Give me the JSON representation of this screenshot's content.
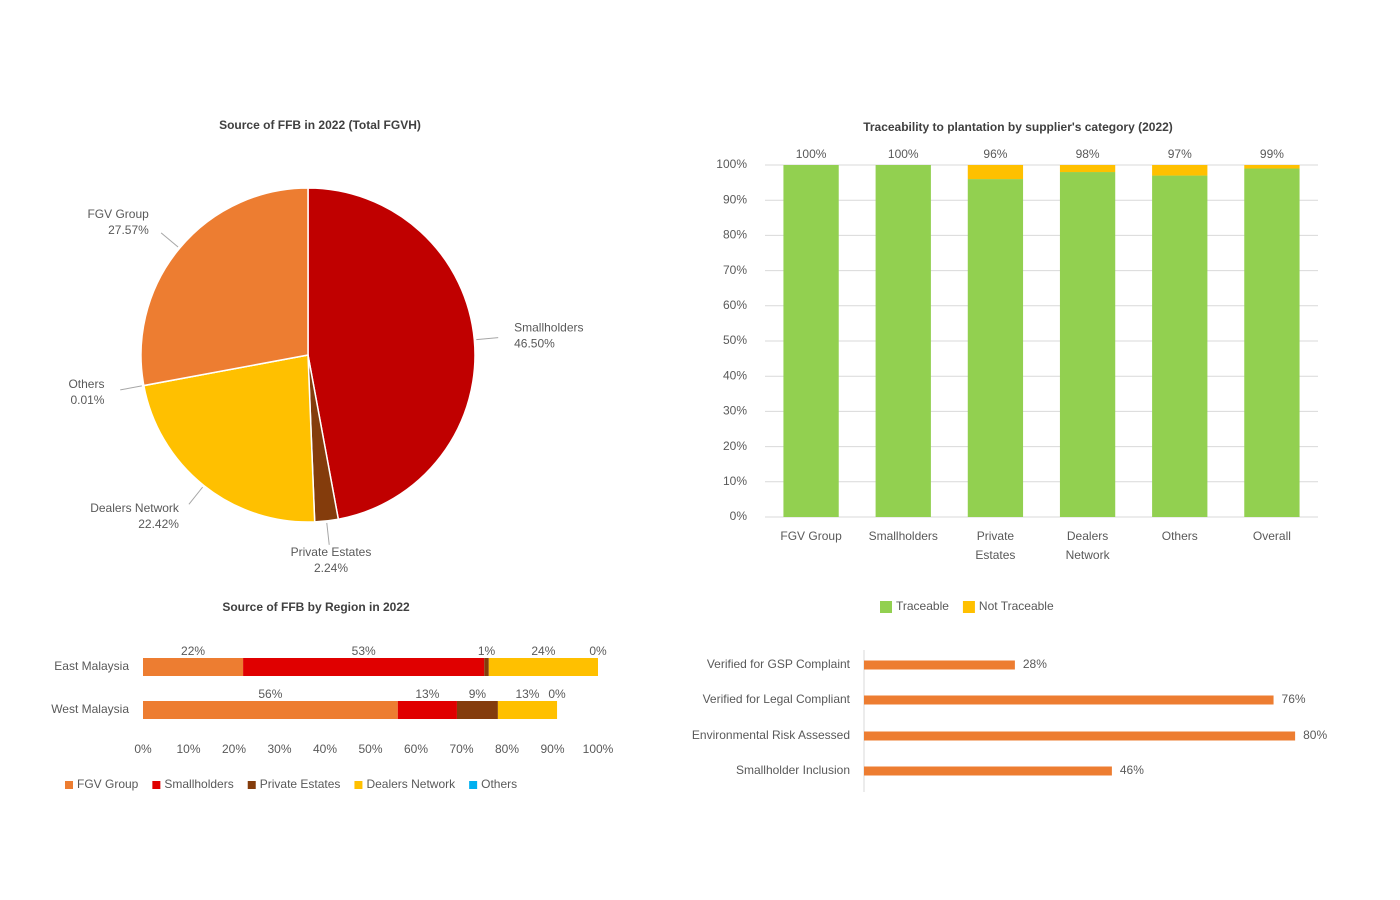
{
  "chart_data": [
    {
      "type": "pie",
      "title": "Source of FFB in 2022 (Total FGVH)",
      "categories": [
        "Smallholders",
        "Private Estates",
        "Dealers Network",
        "Others",
        "FGV Group"
      ],
      "values": [
        46.5,
        2.24,
        22.42,
        0.01,
        27.57
      ],
      "value_labels": [
        "46.50%",
        "2.24%",
        "22.42%",
        "0.01%",
        "27.57%"
      ],
      "colors": [
        "#c00000",
        "#843c0c",
        "#ffc000",
        "#00b0f0",
        "#ed7d31"
      ]
    },
    {
      "type": "bar",
      "stacked": true,
      "title": "Traceability to plantation by supplier's category (2022)",
      "categories": [
        "FGV Group",
        "Smallholders",
        "Private Estates",
        "Dealers Network",
        "Others",
        "Overall"
      ],
      "series": [
        {
          "name": "Traceable",
          "color": "#92d050",
          "values": [
            100,
            100,
            96,
            98,
            97,
            99
          ],
          "value_labels": [
            "100%",
            "100%",
            "96%",
            "98%",
            "97%",
            "99%"
          ]
        },
        {
          "name": "Not Traceable",
          "color": "#ffc000",
          "values": [
            0,
            0,
            4,
            2,
            3,
            1
          ]
        }
      ],
      "ylim": [
        0,
        100
      ],
      "yticks": [
        {
          "value": 0,
          "label": "0%"
        },
        {
          "value": 10,
          "label": "10%"
        },
        {
          "value": 20,
          "label": "20%"
        },
        {
          "value": 30,
          "label": "30%"
        },
        {
          "value": 40,
          "label": "40%"
        },
        {
          "value": 50,
          "label": "50%"
        },
        {
          "value": 60,
          "label": "60%"
        },
        {
          "value": 70,
          "label": "70%"
        },
        {
          "value": 80,
          "label": "80%"
        },
        {
          "value": 90,
          "label": "90%"
        },
        {
          "value": 100,
          "label": "100%"
        }
      ],
      "grid": true,
      "legend": "bottom"
    },
    {
      "type": "bar",
      "stacked": true,
      "horizontal": true,
      "title": "Source of FFB by Region in 2022",
      "categories": [
        "East Malaysia",
        "West Malaysia"
      ],
      "series": [
        {
          "name": "FGV Group",
          "color": "#ed7d31",
          "values": [
            22,
            56
          ],
          "value_labels": [
            "22%",
            "56%"
          ]
        },
        {
          "name": "Smallholders",
          "color": "#e00000",
          "values": [
            53,
            13
          ],
          "value_labels": [
            "53%",
            "13%"
          ]
        },
        {
          "name": "Private Estates",
          "color": "#843c0c",
          "values": [
            1,
            9
          ],
          "value_labels": [
            "1%",
            "9%"
          ]
        },
        {
          "name": "Dealers Network",
          "color": "#ffc000",
          "values": [
            24,
            13
          ],
          "value_labels": [
            "24%",
            "13%"
          ]
        },
        {
          "name": "Others",
          "color": "#00b0f0",
          "values": [
            0,
            0
          ],
          "value_labels": [
            "0%",
            "0%"
          ]
        }
      ],
      "xlim": [
        0,
        100
      ],
      "xticks": [
        {
          "value": 0,
          "label": "0%"
        },
        {
          "value": 10,
          "label": "10%"
        },
        {
          "value": 20,
          "label": "20%"
        },
        {
          "value": 30,
          "label": "30%"
        },
        {
          "value": 40,
          "label": "40%"
        },
        {
          "value": 50,
          "label": "50%"
        },
        {
          "value": 60,
          "label": "60%"
        },
        {
          "value": 70,
          "label": "70%"
        },
        {
          "value": 80,
          "label": "80%"
        },
        {
          "value": 90,
          "label": "90%"
        },
        {
          "value": 100,
          "label": "100%"
        }
      ],
      "legend": "bottom"
    },
    {
      "type": "bar",
      "horizontal": true,
      "categories": [
        "Verified for GSP Complaint",
        "Verified for Legal Compliant",
        "Environmental Risk Assessed",
        "Smallholder Inclusion"
      ],
      "values": [
        28,
        76,
        80,
        46
      ],
      "value_labels": [
        "28%",
        "76%",
        "80%",
        "46%"
      ],
      "color": "#ed7d31",
      "xlim": [
        0,
        90
      ]
    }
  ]
}
